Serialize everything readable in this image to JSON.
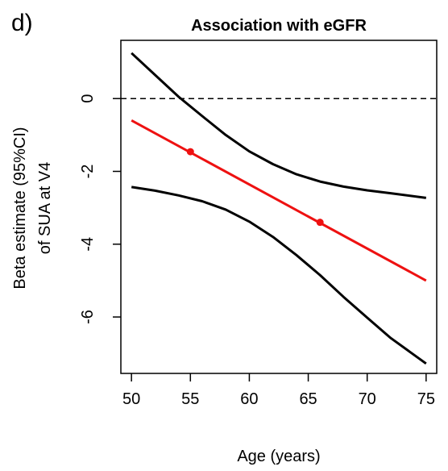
{
  "panel_label": "d)",
  "chart_data": {
    "type": "line",
    "title": "Association with eGFR",
    "xlabel": "Age (years)",
    "ylabel_lines": [
      "Beta estimate (95%CI)",
      "of SUA at V4"
    ],
    "xlim": [
      49.1,
      75.9
    ],
    "ylim": [
      -7.55,
      1.6
    ],
    "x_ticks": [
      50,
      55,
      60,
      65,
      70,
      75
    ],
    "y_ticks": [
      -6,
      -4,
      -2,
      0
    ],
    "reference_line": {
      "y": 0,
      "style": "dashed",
      "color": "#000000"
    },
    "series": [
      {
        "role": "estimate",
        "color": "#ee1111",
        "x": [
          50,
          75
        ],
        "y": [
          -0.6,
          -5.0
        ],
        "markers": [
          {
            "x": 55,
            "y": -1.46
          },
          {
            "x": 66,
            "y": -3.4
          }
        ]
      },
      {
        "role": "upper_ci",
        "color": "#000000",
        "x": [
          50,
          52,
          54,
          56,
          58,
          60,
          62,
          64,
          66,
          68,
          70,
          72,
          75
        ],
        "y": [
          1.25,
          0.65,
          0.05,
          -0.48,
          -1.0,
          -1.45,
          -1.8,
          -2.08,
          -2.28,
          -2.42,
          -2.52,
          -2.6,
          -2.73
        ]
      },
      {
        "role": "lower_ci",
        "color": "#000000",
        "x": [
          50,
          52,
          54,
          56,
          58,
          60,
          62,
          64,
          66,
          68,
          70,
          72,
          75
        ],
        "y": [
          -2.43,
          -2.53,
          -2.66,
          -2.82,
          -3.05,
          -3.38,
          -3.8,
          -4.3,
          -4.85,
          -5.45,
          -6.02,
          -6.58,
          -7.28
        ]
      }
    ],
    "grid": false,
    "legend": "none"
  }
}
